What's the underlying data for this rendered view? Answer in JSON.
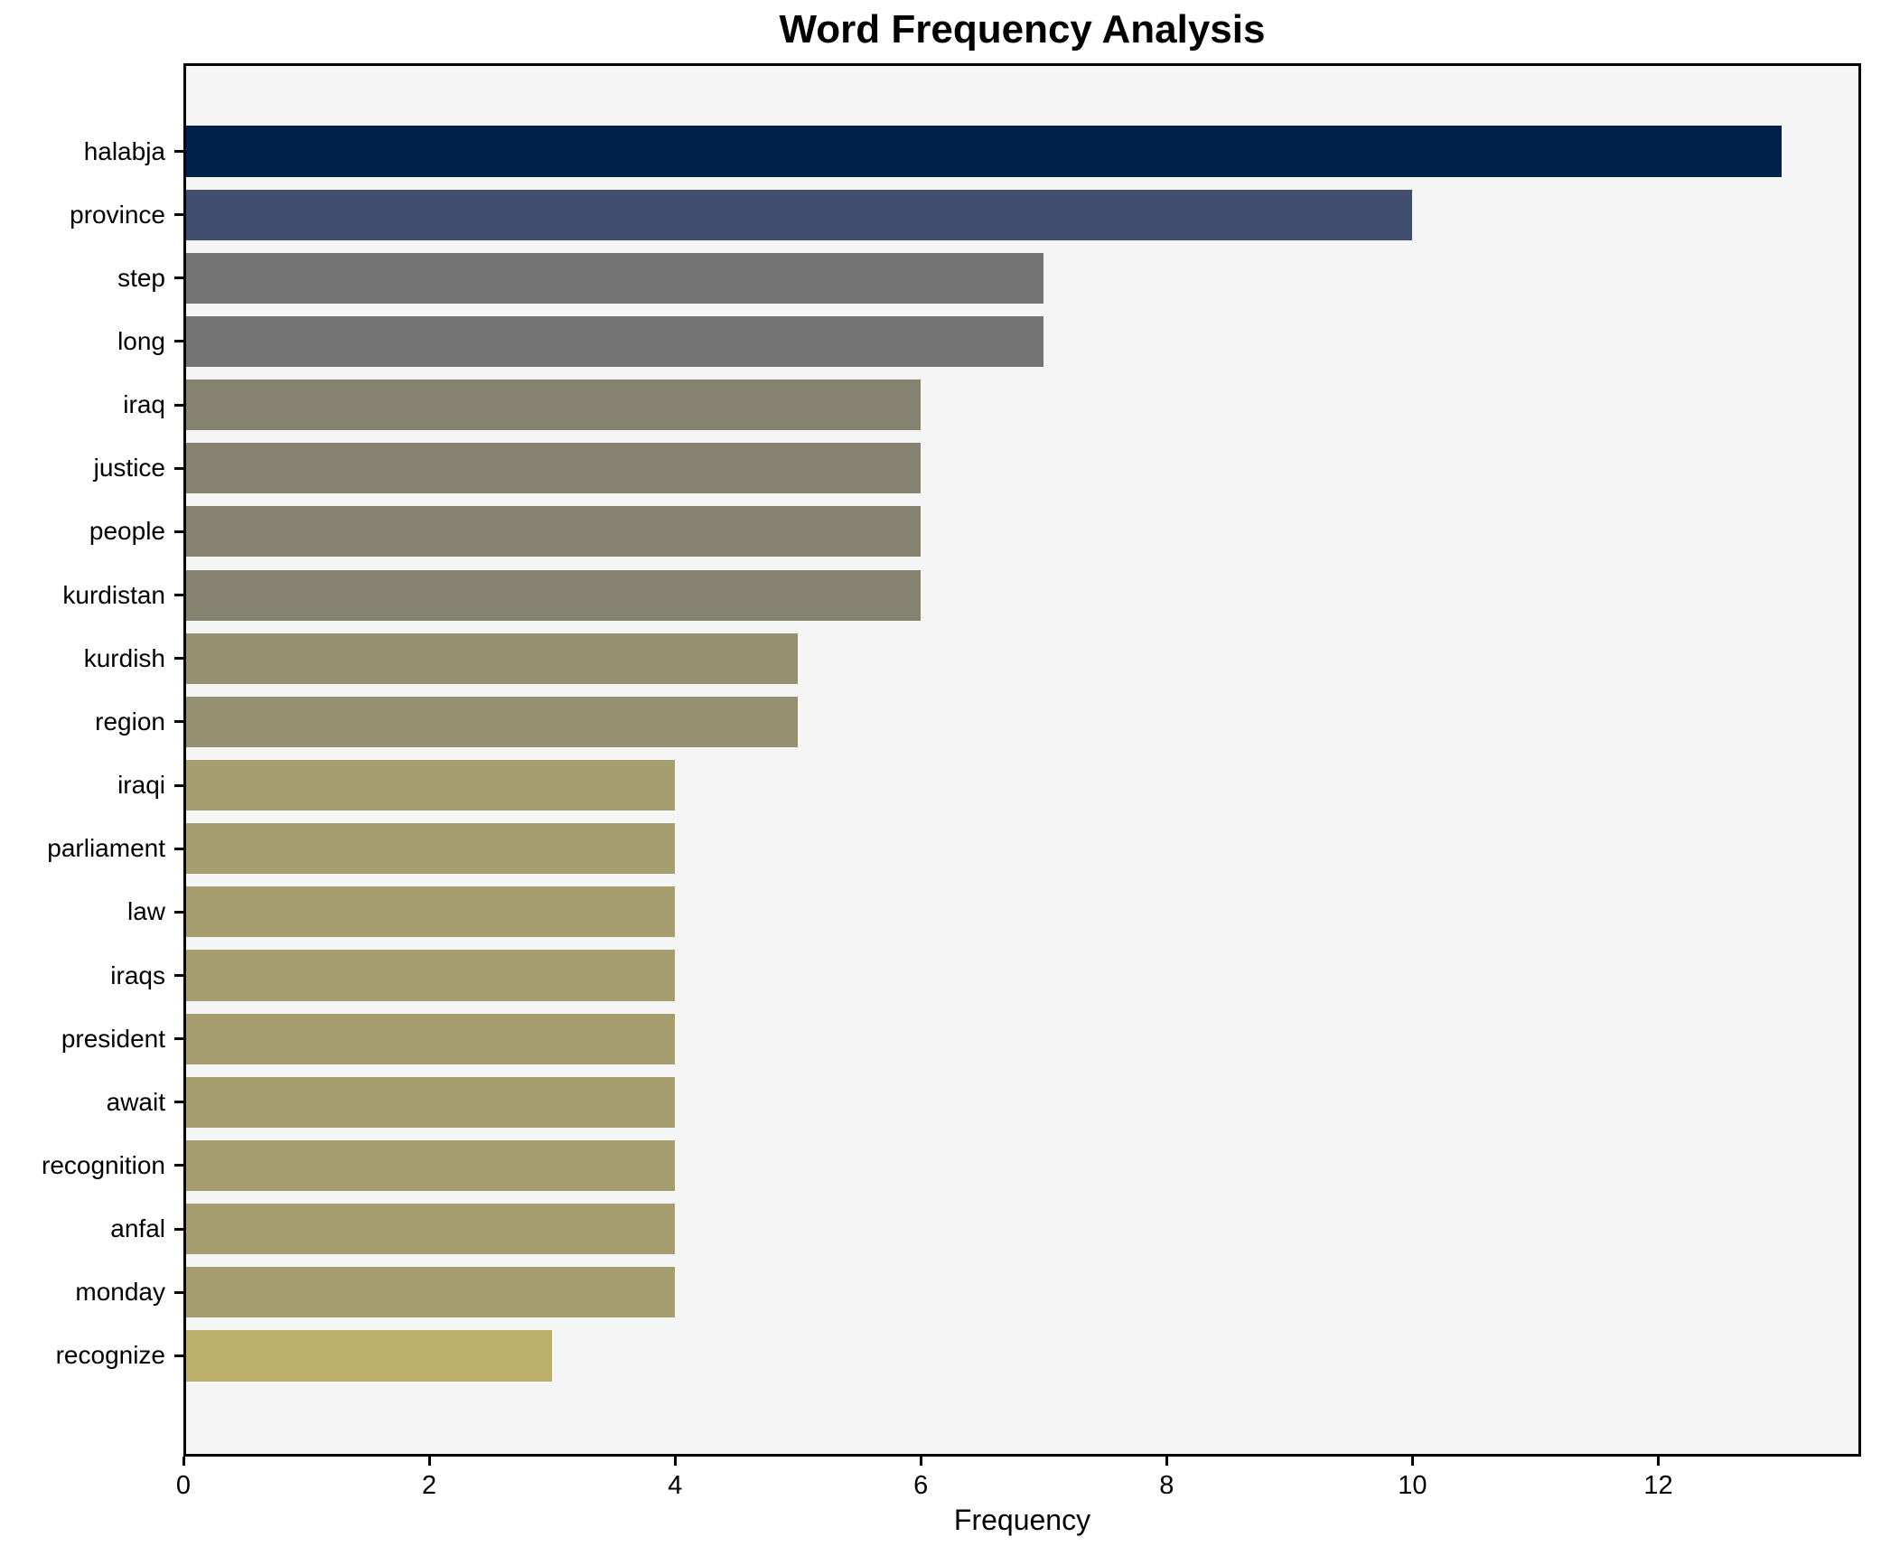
{
  "chart_data": {
    "type": "bar",
    "orientation": "horizontal",
    "title": "Word Frequency Analysis",
    "xlabel": "Frequency",
    "ylabel": "",
    "categories": [
      "halabja",
      "province",
      "step",
      "long",
      "iraq",
      "justice",
      "people",
      "kurdistan",
      "kurdish",
      "region",
      "iraqi",
      "parliament",
      "law",
      "iraqs",
      "president",
      "await",
      "recognition",
      "anfal",
      "monday",
      "recognize"
    ],
    "values": [
      13,
      10,
      7,
      7,
      6,
      6,
      6,
      6,
      5,
      5,
      4,
      4,
      4,
      4,
      4,
      4,
      4,
      4,
      4,
      3
    ],
    "bar_colors": [
      "#02224e",
      "#414e70",
      "#747474",
      "#747474",
      "#868270",
      "#868270",
      "#868270",
      "#868270",
      "#959070",
      "#959070",
      "#a69d6e",
      "#a69d6e",
      "#a69d6e",
      "#a69d6e",
      "#a69d6e",
      "#a69d6e",
      "#a69d6e",
      "#a69d6e",
      "#a69d6e",
      "#bcaf6b"
    ],
    "xlim": [
      0,
      13.65
    ],
    "xticks": [
      0,
      2,
      4,
      6,
      8,
      10,
      12
    ],
    "grid": false,
    "legend_position": "none",
    "plot_bg_color": "#f5f5f6",
    "figure_bg_color": "#ffffff",
    "spine_color": "#000000"
  }
}
